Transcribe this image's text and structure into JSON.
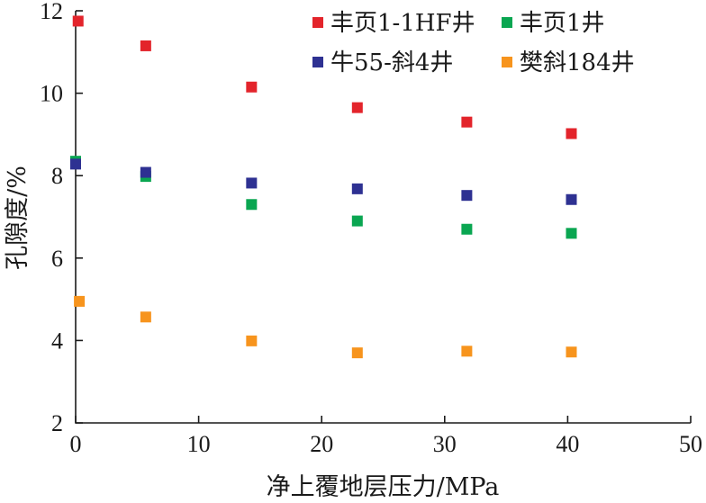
{
  "chart_data": {
    "type": "scatter",
    "title": "",
    "xlabel": "净上覆地层压力/MPa",
    "ylabel": "孔隙度/%",
    "xlim": [
      0,
      50
    ],
    "ylim": [
      2,
      12
    ],
    "xticks": [
      "0",
      "10",
      "20",
      "30",
      "40",
      "50"
    ],
    "yticks": [
      "2",
      "4",
      "6",
      "8",
      "10",
      "12"
    ],
    "grid": false,
    "legend_position": "top-right",
    "series": [
      {
        "name": "丰页1-1HF井",
        "color": "#e3242b",
        "points": [
          [
            0.2,
            11.75
          ],
          [
            5.7,
            11.15
          ],
          [
            14.3,
            10.15
          ],
          [
            22.9,
            9.65
          ],
          [
            31.8,
            9.3
          ],
          [
            40.3,
            9.02
          ]
        ]
      },
      {
        "name": "丰页1井",
        "color": "#0aa651",
        "points": [
          [
            0.0,
            8.35
          ],
          [
            5.7,
            7.98
          ],
          [
            14.3,
            7.3
          ],
          [
            22.9,
            6.9
          ],
          [
            31.8,
            6.7
          ],
          [
            40.3,
            6.6
          ]
        ]
      },
      {
        "name": "牛55-斜4井",
        "color": "#2e3192",
        "points": [
          [
            0.0,
            8.28
          ],
          [
            5.7,
            8.08
          ],
          [
            14.3,
            7.82
          ],
          [
            22.9,
            7.68
          ],
          [
            31.8,
            7.52
          ],
          [
            40.3,
            7.42
          ]
        ]
      },
      {
        "name": "樊斜184井",
        "color": "#f7941d",
        "points": [
          [
            0.3,
            4.95
          ],
          [
            5.7,
            4.57
          ],
          [
            14.3,
            3.99
          ],
          [
            22.9,
            3.7
          ],
          [
            31.8,
            3.74
          ],
          [
            40.3,
            3.72
          ]
        ]
      }
    ]
  }
}
